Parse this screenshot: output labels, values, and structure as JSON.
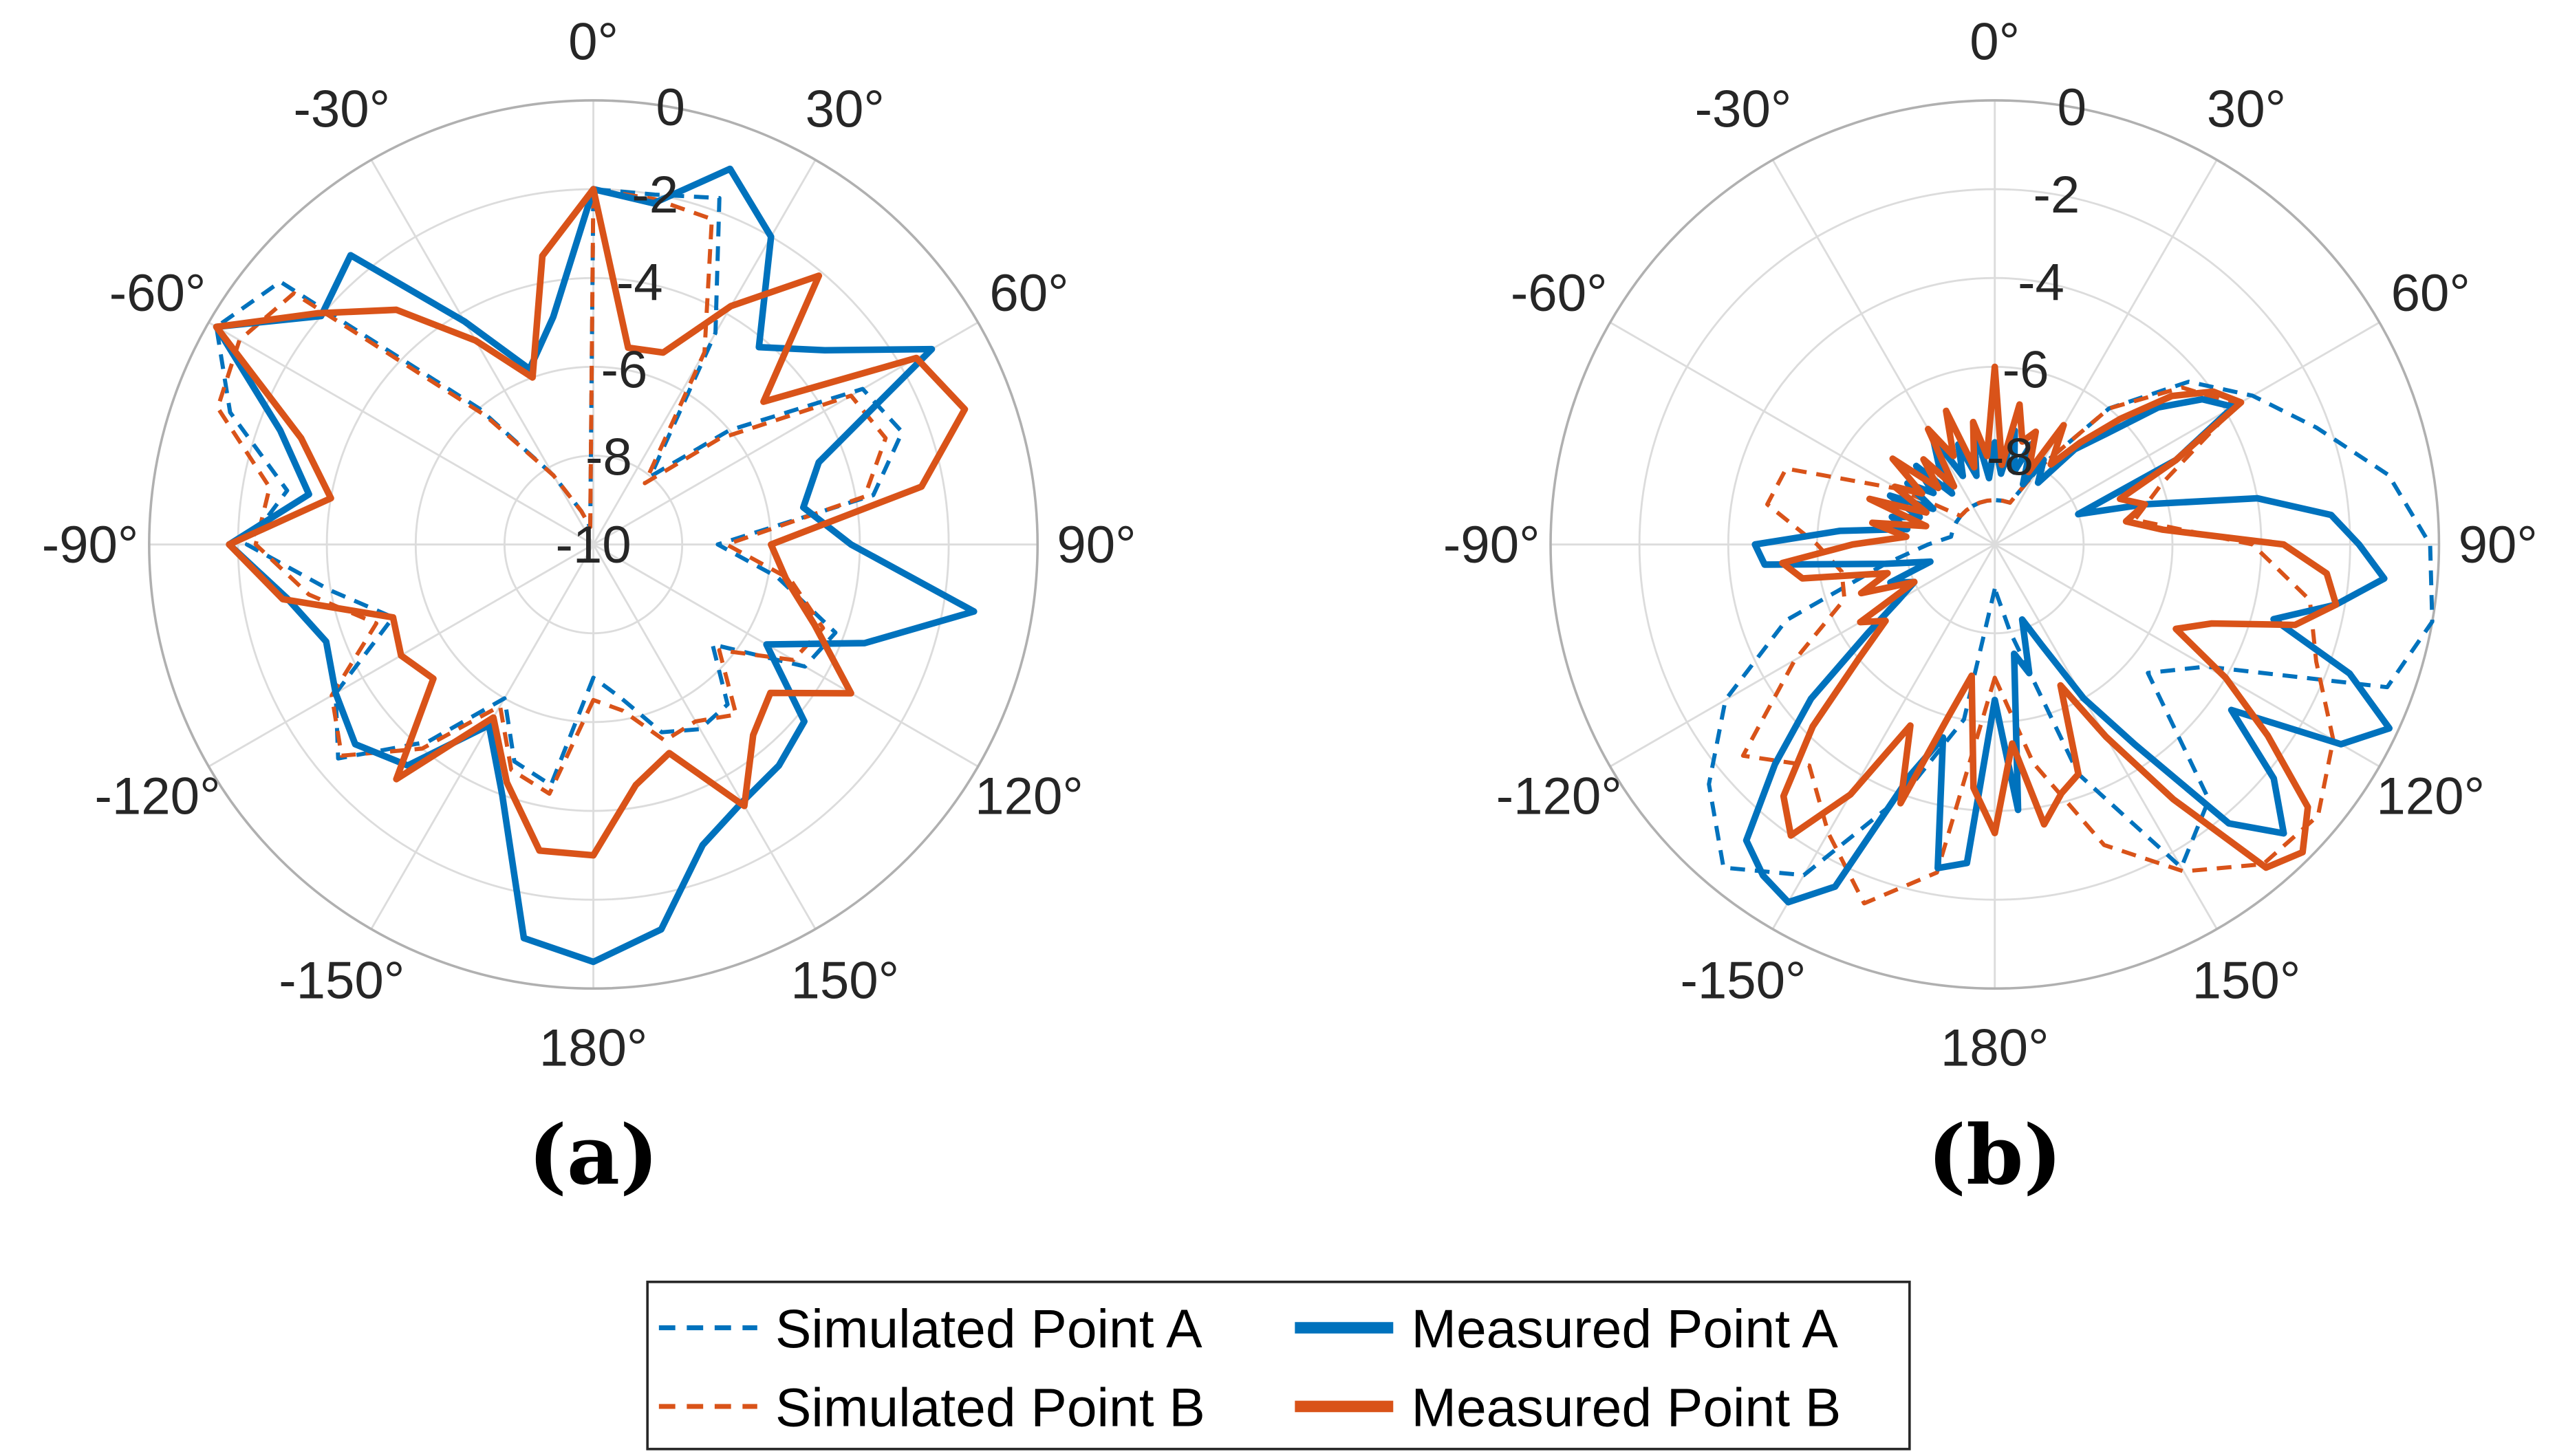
{
  "colors": {
    "point_a": "#0072BD",
    "point_b": "#D95319",
    "grid": "#dcdcdc",
    "outer": "#b0b0b0"
  },
  "legend": {
    "entries": [
      {
        "label": "Simulated Point A",
        "series": "sim_a"
      },
      {
        "label": "Measured Point A",
        "series": "meas_a"
      },
      {
        "label": "Simulated Point B",
        "series": "sim_b"
      },
      {
        "label": "Measured Point B",
        "series": "meas_b"
      }
    ],
    "placement": "bottom-center"
  },
  "chart_data": [
    {
      "type": "polar-line",
      "subplot_label": "(a)",
      "theta_ticks": [
        "0°",
        "30°",
        "60°",
        "90°",
        "120°",
        "150°",
        "180°",
        "-150°",
        "-120°",
        "-90°",
        "-60°",
        "-30°"
      ],
      "r_ticks": [
        "0",
        "-2",
        "-4",
        "-6",
        "-8",
        "-10"
      ],
      "rlim": [
        -10,
        0
      ],
      "series": [
        {
          "name": "Simulated Point A",
          "id": "sim_a",
          "style": "dashed",
          "theta_start": -180,
          "theta_step": 10,
          "values": [
            -7.0,
            -4.5,
            -4.8,
            -6.0,
            -4.2,
            -2.5,
            -3.3,
            -5.2,
            -4.0,
            -2.2,
            -3.0,
            -1.3,
            -0.2,
            -0.8,
            -6,
            -8.2,
            -9.2,
            -9.6,
            -2.0,
            -2.0,
            -1.7,
            -4.5,
            -8,
            -6,
            -3,
            -2.6,
            -3.6,
            -7.2,
            -5.8,
            -4.2,
            -4.5,
            -6.5,
            -5.3,
            -5.2,
            -5.5,
            -6.5
          ]
        },
        {
          "name": "Simulated Point B",
          "id": "sim_b",
          "style": "dashed",
          "theta_start": -180,
          "theta_step": 10,
          "values": [
            -6.5,
            -4.3,
            -4.6,
            -5.8,
            -4.0,
            -2.6,
            -3.2,
            -4.8,
            -3.5,
            -2.4,
            -2.6,
            -1.0,
            -0.8,
            -1.2,
            -6.2,
            -8.2,
            -9.2,
            -9.6,
            -2.0,
            -2.1,
            -2.2,
            -5.0,
            -8.2,
            -6.3,
            -3.3,
            -3.0,
            -3.8,
            -7.0,
            -5.5,
            -4.5,
            -4.8,
            -6.3,
            -5.0,
            -5.4,
            -5.3,
            -6.2
          ]
        },
        {
          "name": "Measured Point A",
          "id": "meas_a",
          "style": "solid",
          "theta_start": -180,
          "theta_step": 10,
          "values": [
            -0.6,
            -1.0,
            -4.0,
            -5.3,
            -3.5,
            -3.0,
            -3.3,
            -3.6,
            -3.0,
            -1.8,
            -3.5,
            -2.5,
            -0.2,
            -2.0,
            -1.5,
            -4.2,
            -5.8,
            -4.8,
            -2.0,
            -2.2,
            -1.0,
            -2.0,
            -4.2,
            -3.2,
            -1.2,
            -4.6,
            -5.2,
            -4.2,
            -1.3,
            -3.5,
            -5.5,
            -3.8,
            -3.5,
            -3.3,
            -2.8,
            -1.2
          ]
        },
        {
          "name": "Measured Point B",
          "id": "meas_b",
          "style": "solid",
          "theta_start": -180,
          "theta_step": 10,
          "values": [
            -3.0,
            -3.0,
            -4.3,
            -5.5,
            -3.1,
            -5.3,
            -5.0,
            -5.2,
            -2.9,
            -1.8,
            -4.0,
            -3.0,
            -0.2,
            -1.9,
            -3.1,
            -4.7,
            -6.0,
            -3.4,
            -2.0,
            -5.5,
            -5.4,
            -3.8,
            -2.1,
            -5.0,
            -1.6,
            -1.1,
            -2.5,
            -6.0,
            -5.6,
            -4.7,
            -3.3,
            -4.8,
            -4.4,
            -3.2,
            -5.0,
            -4.5
          ]
        }
      ]
    },
    {
      "type": "polar-line",
      "subplot_label": "(b)",
      "theta_ticks": [
        "0°",
        "30°",
        "60°",
        "90°",
        "120°",
        "150°",
        "180°",
        "-150°",
        "-120°",
        "-90°",
        "-60°",
        "-30°"
      ],
      "r_ticks": [
        "0",
        "-2",
        "-4",
        "-6",
        "-8"
      ],
      "rlim": [
        -10,
        0
      ],
      "series": [
        {
          "name": "Simulated Point A",
          "id": "sim_a",
          "style": "dashed",
          "theta_start": -180,
          "theta_step": 10,
          "values": [
            -9,
            -6,
            -4,
            -1.4,
            -0.5,
            -1.6,
            -3.0,
            -5,
            -7.5,
            -8.5,
            -9,
            -9,
            -9,
            -9,
            -9,
            -9,
            -9,
            -9,
            -9,
            -9,
            -9,
            -8,
            -6,
            -4.3,
            -3.3,
            -2.3,
            -1.0,
            -0.2,
            0,
            -0.6,
            -4.5,
            -5.5,
            -2.5,
            -1.6,
            -4.5,
            -8
          ]
        },
        {
          "name": "Simulated Point B",
          "id": "sim_b",
          "style": "dashed",
          "theta_start": -180,
          "theta_step": 10,
          "values": [
            -7,
            -2.5,
            -1.4,
            -2.5,
            -3.5,
            -2.6,
            -4.8,
            -6.4,
            -6.5,
            -6.0,
            -4.8,
            -5.0,
            -7.5,
            -9,
            -9,
            -9,
            -9,
            -9,
            -9,
            -9,
            -9,
            -8,
            -6,
            -4.5,
            -3.7,
            -6,
            -6.8,
            -4.2,
            -2.8,
            -2.3,
            -1.2,
            -0.5,
            -0.6,
            -1.5,
            -2.8,
            -5
          ]
        },
        {
          "name": "Measured Point A",
          "id": "meas_a",
          "style": "solid",
          "theta_start": -180,
          "theta_step": 5,
          "values": [
            -6.5,
            -2.8,
            -2.6,
            -5.5,
            -4.5,
            -1.5,
            -0.7,
            -0.9,
            -1.3,
            -3,
            -4.6,
            -6.5,
            -7.5,
            -8,
            -7.5,
            -8.5,
            -7.5,
            -4.8,
            -4.6,
            -6.5,
            -8,
            -7.6,
            -8.2,
            -7.4,
            -8.4,
            -7.6,
            -8.2,
            -7.5,
            -8.5,
            -7.8,
            -7.2,
            -8.3,
            -7.6,
            -8.4,
            -7.3,
            -8.5,
            -7.7,
            -8.4,
            -7.4,
            -8.3,
            -7.6,
            -8.5,
            -7.8,
            -8.3,
            -7.2,
            -6.5,
            -5.2,
            -4.3,
            -3.8,
            -5.5,
            -8,
            -6.5,
            -4.0,
            -2.4,
            -1.8,
            -1.2,
            -2.2,
            -3.5,
            -1.5,
            -0.2,
            -1.0,
            -3.5,
            -1.8,
            -0.8,
            -1.8,
            -4.5,
            -6,
            -7.5,
            -8.2,
            -7,
            -7.5,
            -4
          ]
        },
        {
          "name": "Measured Point B",
          "id": "meas_b",
          "style": "solid",
          "theta_start": -180,
          "theta_step": 5,
          "values": [
            -3.5,
            -4.5,
            -7,
            -6,
            -3.8,
            -5.5,
            -3.5,
            -2.0,
            -2.6,
            -4.2,
            -6,
            -7,
            -6.5,
            -8,
            -6.8,
            -7.5,
            -5.6,
            -5.2,
            -6.8,
            -8,
            -7.2,
            -8.4,
            -7.0,
            -8.3,
            -7.4,
            -8,
            -7,
            -8.2,
            -7.5,
            -8.4,
            -7.0,
            -7.8,
            -6.8,
            -8.2,
            -7.2,
            -8,
            -6.0,
            -8.2,
            -6.8,
            -7.6,
            -7.3,
            -8.2,
            -6.9,
            -7.8,
            -7.0,
            -6.0,
            -4.8,
            -4.0,
            -3.6,
            -5.5,
            -7,
            -6.5,
            -7.0,
            -6.2,
            -3.5,
            -2.5,
            -2.2,
            -3.0,
            -4.8,
            -5.5,
            -4.0,
            -2.5,
            -0.8,
            -0.2,
            -0.5,
            -3,
            -5,
            -6.5,
            -4.5,
            -4.2,
            -3.6,
            -5.5
          ]
        }
      ]
    }
  ]
}
